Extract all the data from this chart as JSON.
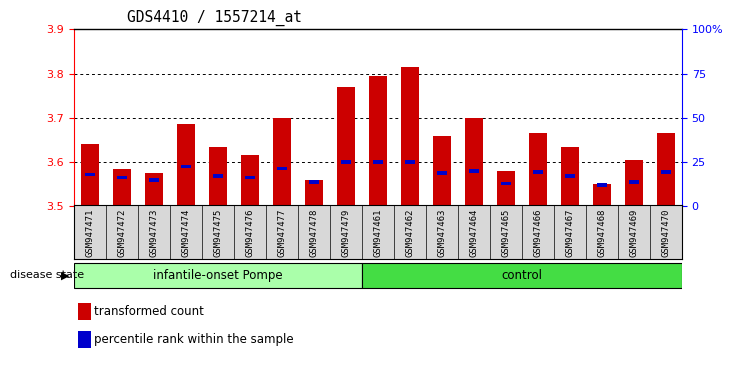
{
  "title": "GDS4410 / 1557214_at",
  "samples": [
    "GSM947471",
    "GSM947472",
    "GSM947473",
    "GSM947474",
    "GSM947475",
    "GSM947476",
    "GSM947477",
    "GSM947478",
    "GSM947479",
    "GSM947461",
    "GSM947462",
    "GSM947463",
    "GSM947464",
    "GSM947465",
    "GSM947466",
    "GSM947467",
    "GSM947468",
    "GSM947469",
    "GSM947470"
  ],
  "red_values": [
    3.64,
    3.585,
    3.575,
    3.685,
    3.635,
    3.615,
    3.7,
    3.56,
    3.77,
    3.795,
    3.815,
    3.66,
    3.7,
    3.58,
    3.665,
    3.635,
    3.55,
    3.605,
    3.665
  ],
  "blue_values": [
    3.572,
    3.565,
    3.56,
    3.59,
    3.568,
    3.565,
    3.585,
    3.555,
    3.6,
    3.6,
    3.6,
    3.575,
    3.58,
    3.552,
    3.578,
    3.568,
    3.548,
    3.555,
    3.578
  ],
  "ylim_left": [
    3.5,
    3.9
  ],
  "ylim_right": [
    0,
    100
  ],
  "yticks_left": [
    3.5,
    3.6,
    3.7,
    3.8,
    3.9
  ],
  "yticks_right": [
    0,
    25,
    50,
    75,
    100
  ],
  "ytick_labels_right": [
    "0",
    "25",
    "50",
    "75",
    "100%"
  ],
  "bar_color": "#cc0000",
  "blue_color": "#0000cc",
  "grid_color": "black",
  "background_color": "#d8d8d8",
  "plot_bg": "#ffffff",
  "group1_label": "infantile-onset Pompe",
  "group2_label": "control",
  "group1_color": "#aaffaa",
  "group2_color": "#44dd44",
  "group1_count": 9,
  "group2_count": 10,
  "disease_state_label": "disease state",
  "legend_red": "transformed count",
  "legend_blue": "percentile rank within the sample",
  "bar_width": 0.55
}
